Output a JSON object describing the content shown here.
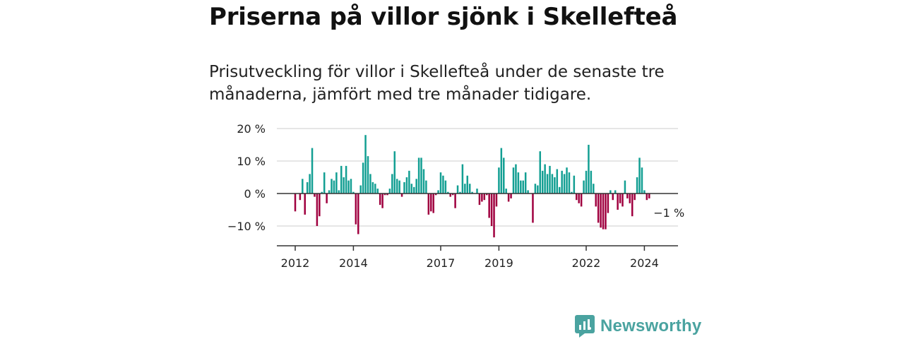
{
  "title": "Priserna på villor sjönk i Skellefteå",
  "subtitle": "Prisutveckling för villor i Skellefteå under de senaste tre månaderna, jämfört med tre månader tidigare.",
  "brand": {
    "name": "Newsworthy"
  },
  "colors": {
    "positive": "#139f93",
    "negative": "#a0003f",
    "grid": "#dddddd",
    "axis": "#333333",
    "brand": "#4aa3a0"
  },
  "chart_data": {
    "type": "bar",
    "title": "Priserna på villor sjönk i Skellefteå",
    "xlabel": "",
    "ylabel": "",
    "ylim": [
      -16,
      20
    ],
    "y_ticks": [
      20,
      10,
      0,
      -10
    ],
    "y_tick_labels": [
      "20 %",
      "10 %",
      "0 %",
      "−10 %"
    ],
    "x_ticks": [
      2012,
      2014,
      2017,
      2019,
      2022,
      2024
    ],
    "x_tick_labels": [
      "2012",
      "2014",
      "2017",
      "2019",
      "2022",
      "2024"
    ],
    "grid": true,
    "last_value_label": "−1 %",
    "series": [
      {
        "name": "Prisutveckling",
        "x_start": 2012,
        "step": "month",
        "values": [
          -5.5,
          0,
          -2,
          4.5,
          -6.5,
          3.5,
          6,
          14,
          -1,
          -10,
          -7,
          0.5,
          6.5,
          -3,
          1,
          4.5,
          4,
          6.5,
          1,
          8.5,
          5,
          8.5,
          4,
          4.5,
          0.5,
          -9.5,
          -12.5,
          2.5,
          9.5,
          18,
          11.5,
          6,
          3.5,
          3,
          1.5,
          -3.5,
          -4.5,
          -0.5,
          -0.5,
          1.5,
          6,
          13,
          4.5,
          4,
          -1,
          3.5,
          5,
          7,
          3,
          2,
          4.5,
          11,
          11,
          7.5,
          4,
          -6.5,
          -5.5,
          -6,
          -0.5,
          1,
          6.5,
          5.5,
          4,
          0.5,
          -1,
          -0.5,
          -4.5,
          2.5,
          0.5,
          9,
          3,
          5.5,
          3,
          0.5,
          0,
          1.5,
          -3.5,
          -2.5,
          -2,
          -0.5,
          -7.5,
          -10,
          -13.5,
          -4,
          8,
          14,
          11,
          1.5,
          -2.5,
          -1.5,
          8,
          9,
          6.5,
          4,
          4,
          6.5,
          1,
          0,
          -9,
          3,
          2.5,
          13,
          7,
          9,
          6,
          8.5,
          6,
          5,
          7.5,
          2,
          7,
          6,
          8,
          6.5,
          0.5,
          5.5,
          -2,
          -3,
          -4,
          4,
          7,
          15,
          7,
          3,
          -4,
          -9,
          -10.5,
          -11,
          -11,
          -6,
          1,
          -2,
          1,
          -5,
          -3,
          -4,
          4,
          -1.5,
          -3,
          -7,
          -2,
          5,
          11,
          8,
          1,
          -2,
          -1.5
        ]
      }
    ]
  }
}
